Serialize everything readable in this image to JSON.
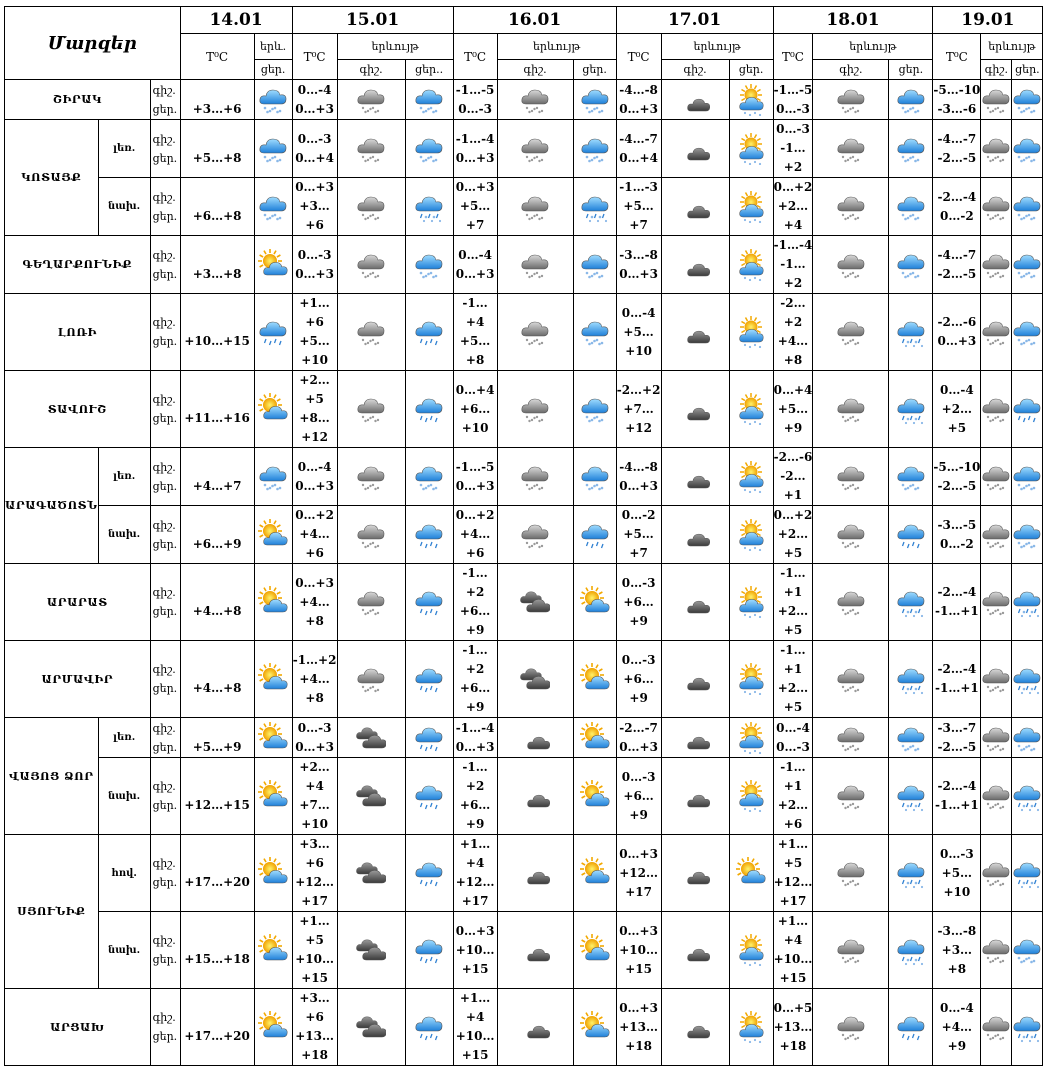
{
  "title": "Մարզեր",
  "headers": {
    "temp": "T⁰C",
    "phen_short": "երև.",
    "phen": "երևույթ",
    "night": "գիշ.",
    "day": "ցեր.",
    "day_dot": "ցեր.."
  },
  "dates": [
    "14.01",
    "15.01",
    "16.01",
    "17.01",
    "18.01",
    "19.01"
  ],
  "row_labels": {
    "night": "գիշ.",
    "day": "ցեր."
  },
  "regions": [
    {
      "name": "ՇԻՐԱԿ",
      "sub": "",
      "d1": "+3…+6",
      "i1": "snow",
      "days": [
        [
          "0…-4",
          "0…+3",
          "cloudsnow",
          "snow"
        ],
        [
          "-1…-5",
          "0…-3",
          "cloudsnow",
          "snow"
        ],
        [
          "-4…-8",
          "0…+3",
          "moon",
          "sunsnow"
        ],
        [
          "-1…-5",
          "0…-3",
          "cloudsnow",
          "snow"
        ],
        [
          "-5…-10",
          "-3…-6",
          "cloudsnow",
          "snow"
        ]
      ]
    },
    {
      "name": "ԿՈՏԱՅՔ",
      "sub": "լեռ.",
      "d1": "+5…+8",
      "i1": "snow",
      "days": [
        [
          "0…-3",
          "0…+4",
          "cloudsnow",
          "snow"
        ],
        [
          "-1…-4",
          "0…+3",
          "cloudsnow",
          "snow"
        ],
        [
          "-4…-7",
          "0…+4",
          "moon",
          "sunsnow"
        ],
        [
          "0…-3",
          "-1…+2",
          "cloudsnow",
          "snow"
        ],
        [
          "-4…-7",
          "-2…-5",
          "cloudsnow",
          "snow"
        ]
      ]
    },
    {
      "name": "",
      "sub": "նախ.",
      "d1": "+6…+8",
      "i1": "snow",
      "days": [
        [
          "0…+3",
          "+3…+6",
          "cloudsnow",
          "rainsnow"
        ],
        [
          "0…+3",
          "+5…+7",
          "cloudsnow",
          "rainsnow"
        ],
        [
          "-1…-3",
          "+5…+7",
          "moon",
          "sunsnow"
        ],
        [
          "0…+2",
          "+2…+4",
          "cloudsnow",
          "snow"
        ],
        [
          "-2…-4",
          "0…-2",
          "cloudsnow",
          "snow"
        ]
      ]
    },
    {
      "name": "ԳԵՂԱՐՔՈՒՆԻՔ",
      "sub": "",
      "d1": "+3…+8",
      "i1": "sun",
      "days": [
        [
          "0…-3",
          "0…+3",
          "cloudsnow",
          "snow"
        ],
        [
          "0…-4",
          "0…+3",
          "cloudsnow",
          "snow"
        ],
        [
          "-3…-8",
          "0…+3",
          "moon",
          "sunsnow"
        ],
        [
          "-1…-4",
          "-1…+2",
          "cloudsnow",
          "snow"
        ],
        [
          "-4…-7",
          "-2…-5",
          "cloudsnow",
          "snow"
        ]
      ]
    },
    {
      "name": "ԼՈՌԻ",
      "sub": "",
      "d1": "+10…+15",
      "i1": "rain",
      "days": [
        [
          "+1…+6",
          "+5…+10",
          "cloudsnow",
          "rain"
        ],
        [
          "-1…+4",
          "+5…+8",
          "cloudsnow",
          "snow"
        ],
        [
          "0…-4",
          "+5…+10",
          "moon",
          "sunsnow"
        ],
        [
          "-2…+2",
          "+4…+8",
          "cloudsnow",
          "rainsnow"
        ],
        [
          "-2…-6",
          "0…+3",
          "cloudsnow",
          "snow"
        ]
      ]
    },
    {
      "name": "ՏԱՎՈՒՇ",
      "sub": "",
      "d1": "+11…+16",
      "i1": "sun",
      "days": [
        [
          "+2…+5",
          "+8…+12",
          "cloudsnow",
          "rain"
        ],
        [
          "0…+4",
          "+6…+10",
          "cloudsnow",
          "snow"
        ],
        [
          "-2…+2",
          "+7…+12",
          "moon",
          "sunsnow"
        ],
        [
          "0…+4",
          "+5…+9",
          "cloudsnow",
          "rainsnow"
        ],
        [
          "0…-4",
          "+2…+5",
          "cloudsnow",
          "rain"
        ]
      ]
    },
    {
      "name": "ԱՐԱԳԱԾՈՏՆ",
      "sub": "լեռ.",
      "d1": "+4…+7",
      "i1": "snow",
      "days": [
        [
          "0…-4",
          "0…+3",
          "cloudsnow",
          "snow"
        ],
        [
          "-1…-5",
          "0…+3",
          "cloudsnow",
          "snow"
        ],
        [
          "-4…-8",
          "0…+3",
          "moon",
          "sunsnow"
        ],
        [
          "-2…-6",
          "-2…+1",
          "cloudsnow",
          "snow"
        ],
        [
          "-5…-10",
          "-2…-5",
          "cloudsnow",
          "snow"
        ]
      ]
    },
    {
      "name": "",
      "sub": "նախ.",
      "d1": "+6…+9",
      "i1": "sun",
      "days": [
        [
          "0…+2",
          "+4…+6",
          "cloudsnow",
          "rain"
        ],
        [
          "0…+2",
          "+4…+6",
          "cloudsnow",
          "rain"
        ],
        [
          "0…-2",
          "+5…+7",
          "moon",
          "sunsnow"
        ],
        [
          "0…+2",
          "+2…+5",
          "cloudsnow",
          "rain"
        ],
        [
          "-3…-5",
          "0…-2",
          "cloudsnow",
          "snow"
        ]
      ]
    },
    {
      "name": "ԱՐԱՐԱՏ",
      "sub": "",
      "d1": "+4…+8",
      "i1": "sun",
      "days": [
        [
          "0…+3",
          "+4…+8",
          "cloudsnow",
          "rain"
        ],
        [
          "-1…+2",
          "+6…+9",
          "darkcloud",
          "sun"
        ],
        [
          "0…-3",
          "+6…+9",
          "moon",
          "sunsnow"
        ],
        [
          "-1…+1",
          "+2…+5",
          "cloudsnow",
          "rainsnow"
        ],
        [
          "-2…-4",
          "-1…+1",
          "cloudsnow",
          "rainsnow"
        ]
      ]
    },
    {
      "name": "ԱՐՄԱՎԻՐ",
      "sub": "",
      "d1": "+4…+8",
      "i1": "sun",
      "days": [
        [
          "-1…+2",
          "+4…+8",
          "cloudsnow",
          "rain"
        ],
        [
          "-1…+2",
          "+6…+9",
          "darkcloud",
          "sun"
        ],
        [
          "0…-3",
          "+6…+9",
          "moon",
          "sunsnow"
        ],
        [
          "-1…+1",
          "+2…+5",
          "cloudsnow",
          "rainsnow"
        ],
        [
          "-2…-4",
          "-1…+1",
          "cloudsnow",
          "rainsnow"
        ]
      ]
    },
    {
      "name": "ՎԱՅՈՑ ՁՈՐ",
      "sub": "լեռ.",
      "d1": "+5…+9",
      "i1": "sun",
      "days": [
        [
          "0…-3",
          "0…+3",
          "darkcloud",
          "rain"
        ],
        [
          "-1…-4",
          "0…+3",
          "moon",
          "sun"
        ],
        [
          "-2…-7",
          "0…+3",
          "moon",
          "sunsnow"
        ],
        [
          "0…-4",
          "0…-3",
          "cloudsnow",
          "snow"
        ],
        [
          "-3…-7",
          "-2…-5",
          "cloudsnow",
          "snow"
        ]
      ]
    },
    {
      "name": "",
      "sub": "նախ.",
      "d1": "+12…+15",
      "i1": "sun",
      "days": [
        [
          "+2…+4",
          "+7…+10",
          "darkcloud",
          "rain"
        ],
        [
          "-1…+2",
          "+6…+9",
          "moon",
          "sun"
        ],
        [
          "0…-3",
          "+6…+9",
          "moon",
          "sunsnow"
        ],
        [
          "-1…+1",
          "+2…+6",
          "cloudsnow",
          "rainsnow"
        ],
        [
          "-2…-4",
          "-1…+1",
          "cloudsnow",
          "rainsnow"
        ]
      ]
    },
    {
      "name": "ՍՅՈՒՆԻՔ",
      "sub": "հով.",
      "d1": "+17…+20",
      "i1": "sun",
      "days": [
        [
          "+3…+6",
          "+12…+17",
          "darkcloud",
          "rain"
        ],
        [
          "+1…+4",
          "+12…+17",
          "moon",
          "sun"
        ],
        [
          "0…+3",
          "+12…+17",
          "moon",
          "sun"
        ],
        [
          "+1…+5",
          "+12…+17",
          "cloudsnow",
          "rainsnow"
        ],
        [
          "0…-3",
          "+5…+10",
          "cloudsnow",
          "rainsnow"
        ]
      ]
    },
    {
      "name": "",
      "sub": "նախ.",
      "d1": "+15…+18",
      "i1": "sun",
      "days": [
        [
          "+1…+5",
          "+10…+15",
          "darkcloud",
          "rain"
        ],
        [
          "0…+3",
          "+10…+15",
          "moon",
          "sun"
        ],
        [
          "0…+3",
          "+10…+15",
          "moon",
          "sunsnow"
        ],
        [
          "+1…+4",
          "+10…+15",
          "cloudsnow",
          "rainsnow"
        ],
        [
          "-3…-8",
          "+3…+8",
          "cloudsnow",
          "snow"
        ]
      ]
    },
    {
      "name": "ԱՐՑԱԽ",
      "sub": "",
      "d1": "+17…+20",
      "i1": "sun",
      "days": [
        [
          "+3…+6",
          "+13…+18",
          "darkcloud",
          "rain"
        ],
        [
          "+1…+4",
          "+10…+15",
          "moon",
          "sun"
        ],
        [
          "0…+3",
          "+13…+18",
          "moon",
          "sunsnow"
        ],
        [
          "0…+5",
          "+13…+18",
          "cloudsnow",
          "rain"
        ],
        [
          "0…-4",
          "+4…+9",
          "cloudsnow",
          "rainsnow"
        ]
      ]
    }
  ]
}
